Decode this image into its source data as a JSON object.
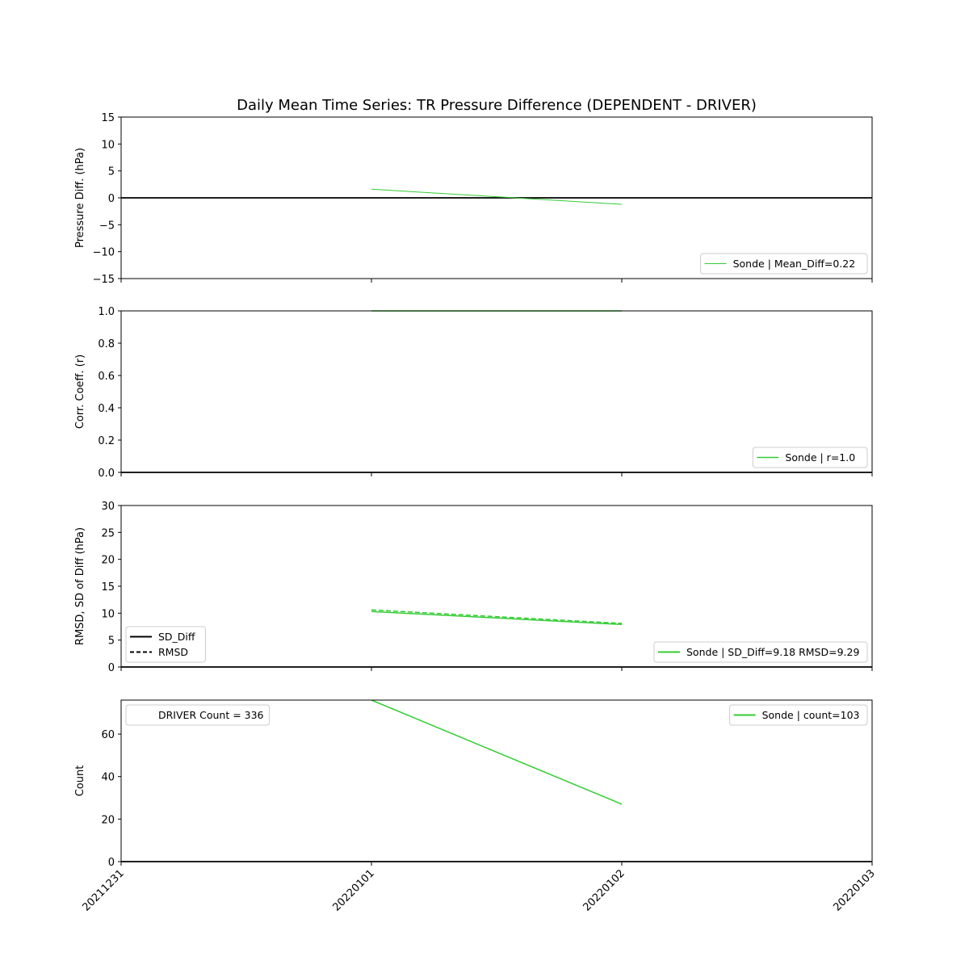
{
  "title": "Daily Mean Time Series: TR Pressure Difference (DEPENDENT - DRIVER)",
  "x_tick_labels": [
    "20211231",
    "20220101",
    "20220102",
    "20220103"
  ],
  "colors": {
    "series": "#33cc33",
    "axis": "#000000",
    "zero_line": "#000000"
  },
  "chart_data": [
    {
      "type": "line",
      "ylabel": "Pressure Diff. (hPa)",
      "ylim": [
        -15,
        15
      ],
      "yticks": [
        -15,
        -10,
        -5,
        0,
        5,
        10,
        15
      ],
      "ytick_labels": [
        "−15",
        "−10",
        "−5",
        "0",
        "5",
        "10",
        "15"
      ],
      "x": [
        "20211231",
        "20220101",
        "20220102",
        "20220103"
      ],
      "hline": 0,
      "series": [
        {
          "name": "Sonde | Mean_Diff=0.22",
          "x": [
            "20220101",
            "20220102"
          ],
          "values": [
            1.6,
            -1.2
          ],
          "style": "solid",
          "width": 1
        }
      ],
      "legends": [
        {
          "position": "lower-right",
          "entries": [
            {
              "label": "Sonde | Mean_Diff=0.22",
              "style": "solid",
              "color": "#33cc33",
              "width": 1
            }
          ]
        }
      ]
    },
    {
      "type": "line",
      "ylabel": "Corr. Coeff. (r)",
      "ylim": [
        0,
        1
      ],
      "yticks": [
        0,
        0.2,
        0.4,
        0.6,
        0.8,
        1.0
      ],
      "ytick_labels": [
        "0.0",
        "0.2",
        "0.4",
        "0.6",
        "0.8",
        "1.0"
      ],
      "x": [
        "20211231",
        "20220101",
        "20220102",
        "20220103"
      ],
      "hline": 0,
      "series": [
        {
          "name": "Sonde | r=1.0",
          "x": [
            "20220101",
            "20220102"
          ],
          "values": [
            1.0,
            1.0
          ],
          "style": "solid",
          "width": 1.5
        }
      ],
      "legends": [
        {
          "position": "lower-right",
          "entries": [
            {
              "label": "Sonde | r=1.0",
              "style": "solid",
              "color": "#33cc33",
              "width": 1.5
            }
          ]
        }
      ]
    },
    {
      "type": "line",
      "ylabel": "RMSD, SD of Diff (hPa)",
      "ylim": [
        0,
        30
      ],
      "yticks": [
        0,
        5,
        10,
        15,
        20,
        25,
        30
      ],
      "ytick_labels": [
        "0",
        "5",
        "10",
        "15",
        "20",
        "25",
        "30"
      ],
      "x": [
        "20211231",
        "20220101",
        "20220102",
        "20220103"
      ],
      "hline": 0,
      "series": [
        {
          "name": "SD_Diff",
          "x": [
            "20220101",
            "20220102"
          ],
          "values": [
            10.3,
            7.9
          ],
          "style": "solid",
          "width": 1.5
        },
        {
          "name": "RMSD",
          "x": [
            "20220101",
            "20220102"
          ],
          "values": [
            10.6,
            8.1
          ],
          "style": "dashed",
          "width": 1.5
        }
      ],
      "legends": [
        {
          "position": "lower-left",
          "entries": [
            {
              "label": "SD_Diff",
              "style": "solid",
              "color": "#000000",
              "width": 2
            },
            {
              "label": "RMSD",
              "style": "dashed",
              "color": "#000000",
              "width": 2
            }
          ]
        },
        {
          "position": "lower-right",
          "entries": [
            {
              "label": "Sonde | SD_Diff=9.18 RMSD=9.29",
              "style": "solid",
              "color": "#33cc33",
              "width": 2
            }
          ]
        }
      ]
    },
    {
      "type": "line",
      "ylabel": "Count",
      "ylim": [
        0,
        76
      ],
      "yticks": [
        0,
        20,
        40,
        60
      ],
      "ytick_labels": [
        "0",
        "20",
        "40",
        "60"
      ],
      "x": [
        "20211231",
        "20220101",
        "20220102",
        "20220103"
      ],
      "hline": 0,
      "series": [
        {
          "name": "Sonde | count=103",
          "x": [
            "20220101",
            "20220102"
          ],
          "values": [
            76,
            27
          ],
          "style": "solid",
          "width": 1.5
        }
      ],
      "legends": [
        {
          "position": "upper-left",
          "entries": [
            {
              "label": "DRIVER Count = 336",
              "style": "none",
              "color": "#ffffff",
              "width": 0
            }
          ]
        },
        {
          "position": "upper-right",
          "entries": [
            {
              "label": "Sonde | count=103",
              "style": "solid",
              "color": "#33cc33",
              "width": 2
            }
          ]
        }
      ]
    }
  ]
}
